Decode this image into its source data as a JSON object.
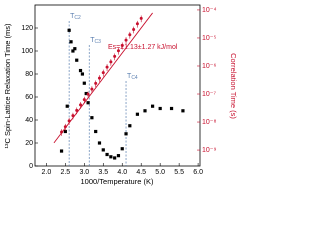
{
  "chart_data": {
    "type": "scatter",
    "xlabel": "1000/Temperature (K)",
    "ylabel": "¹³C Spin-Lattice Relaxation Time (ms)",
    "y2label": "Correlation Time (s)",
    "xlim": [
      1.7,
      6.05
    ],
    "xticks": [
      {
        "value": 2,
        "label": "2.0"
      },
      2.5,
      {
        "value": 3,
        "label": "3.0"
      },
      3.5,
      {
        "value": 4,
        "label": "4.0"
      },
      4.5,
      {
        "value": 5,
        "label": "5.0"
      },
      5.5,
      {
        "value": 6,
        "label": "6.0"
      }
    ],
    "ylim": [
      0,
      140
    ],
    "yticks": [
      0,
      20,
      40,
      60,
      80,
      100,
      120
    ],
    "y2lim": [
      2.7e-10,
      0.00015
    ],
    "y2scale": "log",
    "y2ticks": [
      {
        "value": 1e-09,
        "label": "10⁻⁹"
      },
      {
        "value": 1e-08,
        "label": "10⁻⁸"
      },
      {
        "value": 1e-07,
        "label": "10⁻⁷"
      },
      {
        "value": 1e-06,
        "label": "10⁻⁶"
      },
      {
        "value": 1e-05,
        "label": "10⁻⁵"
      },
      {
        "value": 0.0001,
        "label": "10⁻⁴"
      }
    ],
    "y2color": "#c8102e",
    "series": [
      {
        "color": "#000000",
        "marker": "square",
        "x": [
          2.4,
          2.5,
          2.55,
          2.6,
          2.65,
          2.7,
          2.75,
          2.8,
          2.9,
          2.95,
          3.0,
          3.05,
          3.1,
          3.2,
          3.3,
          3.4,
          3.5,
          3.6,
          3.7,
          3.8,
          3.9,
          4.0,
          4.1,
          4.2,
          4.4,
          4.6,
          4.8,
          5.0,
          5.3,
          5.6
        ],
        "values": [
          13,
          30,
          52,
          118,
          108,
          100,
          102,
          92,
          83,
          80,
          72,
          63,
          55,
          42,
          30,
          20,
          14,
          10,
          8,
          7,
          9,
          15,
          28,
          35,
          45,
          48,
          52,
          50,
          50,
          48
        ]
      },
      {
        "color": "#c8102e",
        "marker": "circle",
        "axis": "y2",
        "x": [
          2.4,
          2.5,
          2.6,
          2.7,
          2.8,
          2.9,
          3.0,
          3.1,
          3.2,
          3.3,
          3.4,
          3.5,
          3.6,
          3.7,
          3.8,
          3.9,
          4.0,
          4.1,
          4.2,
          4.3,
          4.4,
          4.5
        ],
        "values": [
          4.4e-09,
          6.8e-09,
          1.1e-08,
          1.7e-08,
          2.6e-08,
          4.1e-08,
          6.3e-08,
          9.8e-08,
          1.5e-07,
          2.4e-07,
          3.7e-07,
          5.8e-07,
          9.1e-07,
          1.4e-06,
          2.2e-06,
          3.5e-06,
          5.4e-06,
          8.4e-06,
          1.3e-05,
          2e-05,
          3.2e-05,
          5e-05
        ],
        "errors": [
          1.2e-09,
          1.8e-09,
          3e-09,
          4.5e-09,
          7e-09,
          1.1e-08,
          1.7e-08,
          2.6e-08,
          4e-08,
          6.5e-08,
          1e-07,
          1.6e-07,
          2.5e-07,
          3.8e-07,
          6e-07,
          9.5e-07,
          1.5e-06,
          2.3e-06,
          3.5e-06,
          5.4e-06,
          8.6e-06,
          1.35e-05
        ]
      },
      {
        "color": "#c8102e",
        "marker": "line",
        "axis": "y2",
        "x": [
          2.2,
          4.8
        ],
        "values": [
          1.8e-09,
          7.8e-05
        ]
      }
    ],
    "annotation": "Es=21.13±1.27 kJ/mol",
    "vlines": [
      {
        "x": 2.6,
        "label": "T",
        "sub": "C2"
      },
      {
        "x": 3.13,
        "label": "T",
        "sub": "C3"
      },
      {
        "x": 4.1,
        "label": "T",
        "sub": "C4"
      }
    ],
    "vline_color": "#5b7fb0"
  }
}
